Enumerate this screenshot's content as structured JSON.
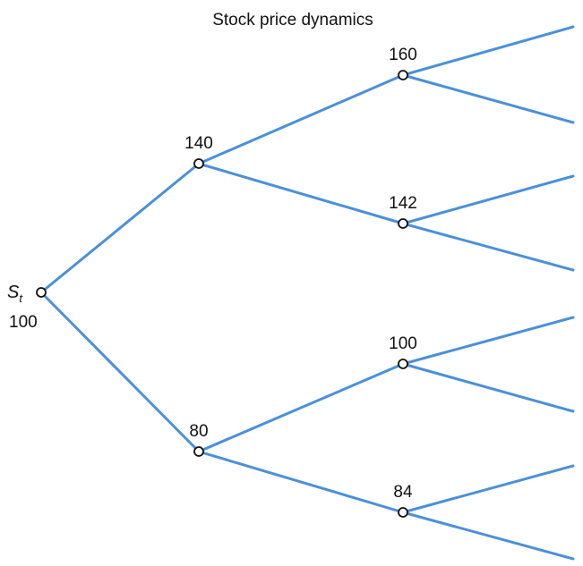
{
  "title": "Stock price dynamics",
  "root": {
    "variable": "S",
    "subscript": "t",
    "value": "100"
  },
  "colors": {
    "branch": "#4a90d9",
    "node_fill": "#ffffff",
    "node_stroke": "#111111"
  },
  "tree": {
    "levels": [
      [
        "100"
      ],
      [
        "140",
        "80"
      ],
      [
        "160",
        "142",
        "100",
        "84"
      ]
    ],
    "leaf_branches_per_node": 2
  }
}
